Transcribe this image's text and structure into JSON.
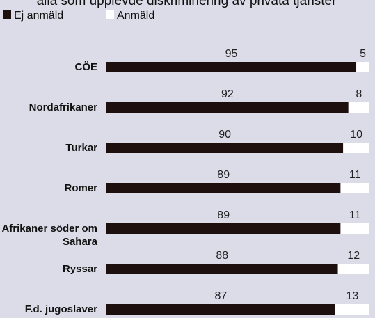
{
  "chart_data": {
    "type": "stacked-bar-horizontal",
    "title": "alla som upplevde diskriminering av privata tjänster",
    "categories": [
      "CÖE",
      "Nordafrikaner",
      "Turkar",
      "Romer",
      "Afrikaner söder om Sahara",
      "Ryssar",
      "F.d. jugoslaver"
    ],
    "series": [
      {
        "name": "Ej anmäld",
        "color": "#1e0f0f",
        "values": [
          95,
          92,
          90,
          89,
          89,
          88,
          87
        ]
      },
      {
        "name": "Anmäld",
        "color": "#ffffff",
        "values": [
          5,
          8,
          10,
          11,
          11,
          12,
          13
        ]
      }
    ],
    "xlim": [
      0,
      100
    ]
  }
}
